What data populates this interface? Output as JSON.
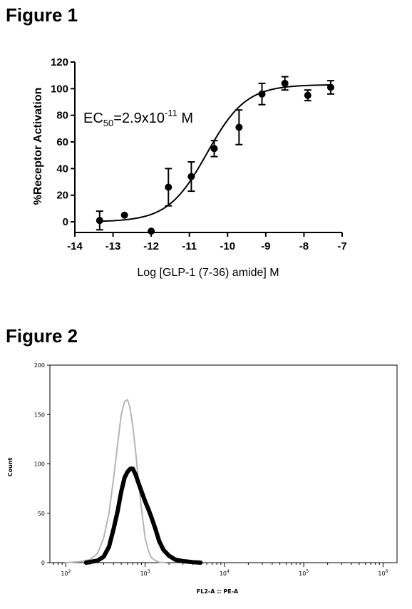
{
  "figure1": {
    "heading": "Figure 1",
    "annotation": {
      "prefix": "EC",
      "sub": "50",
      "middle": "=2.9x10",
      "sup": "-11",
      "suffix": " M"
    },
    "chart_data": {
      "type": "scatter",
      "xlabel": "Log [GLP-1 (7-36) amide] M",
      "ylabel": "%Receptor Activation",
      "xlim": [
        -14,
        -7
      ],
      "ylim": [
        -8,
        120
      ],
      "xticks": [
        "-14",
        "-13",
        "-12",
        "-11",
        "-10",
        "-9",
        "-8",
        "-7"
      ],
      "yticks": [
        "0",
        "20",
        "40",
        "60",
        "80",
        "100",
        "120"
      ],
      "points": [
        {
          "x": -13.35,
          "y": 1,
          "err": 7
        },
        {
          "x": -12.7,
          "y": 5,
          "err": 0
        },
        {
          "x": -12.0,
          "y": -7,
          "err": 0
        },
        {
          "x": -11.55,
          "y": 26,
          "err": 14
        },
        {
          "x": -10.95,
          "y": 34,
          "err": 11
        },
        {
          "x": -10.35,
          "y": 55,
          "err": 6
        },
        {
          "x": -9.7,
          "y": 71,
          "err": 13
        },
        {
          "x": -9.1,
          "y": 96,
          "err": 8
        },
        {
          "x": -8.5,
          "y": 104,
          "err": 5
        },
        {
          "x": -7.9,
          "y": 95,
          "err": 4
        },
        {
          "x": -7.3,
          "y": 101,
          "err": 5
        }
      ],
      "fit": {
        "bottom": 0,
        "top": 103,
        "log_ec50": -10.54,
        "hill": 0.85
      },
      "grid": false
    }
  },
  "figure2": {
    "heading": "Figure 2",
    "chart_data": {
      "type": "line",
      "xlabel": "FL2-A :: PE-A",
      "ylabel": "Count",
      "xscale": "log",
      "xlim": [
        63,
        1500000
      ],
      "ylim": [
        0,
        200
      ],
      "yticks": [
        "0",
        "50",
        "100",
        "150",
        "200"
      ],
      "xticks": [
        {
          "value": 100,
          "base": "10",
          "exp": "2"
        },
        {
          "value": 1000,
          "base": "10",
          "exp": "3"
        },
        {
          "value": 10000,
          "base": "10",
          "exp": "4"
        },
        {
          "value": 100000,
          "base": "10",
          "exp": "5"
        },
        {
          "value": 1000000,
          "base": "10",
          "exp": "6"
        }
      ],
      "series": [
        {
          "color": "#b5b5b5",
          "stroke": "thin",
          "points": [
            [
              100,
              0
            ],
            [
              150,
              1
            ],
            [
              200,
              3
            ],
            [
              250,
              9
            ],
            [
              300,
              25
            ],
            [
              350,
              50
            ],
            [
              400,
              85
            ],
            [
              450,
              120
            ],
            [
              500,
              150
            ],
            [
              550,
              163
            ],
            [
              600,
              165
            ],
            [
              640,
              158
            ],
            [
              700,
              138
            ],
            [
              760,
              112
            ],
            [
              830,
              80
            ],
            [
              920,
              48
            ],
            [
              1000,
              25
            ],
            [
              1100,
              12
            ],
            [
              1200,
              5
            ],
            [
              1350,
              2
            ],
            [
              1500,
              0.5
            ],
            [
              1800,
              0
            ]
          ]
        },
        {
          "color": "#000000",
          "stroke": "thick",
          "points": [
            [
              180,
              0
            ],
            [
              250,
              2
            ],
            [
              300,
              6
            ],
            [
              350,
              16
            ],
            [
              400,
              34
            ],
            [
              450,
              52
            ],
            [
              500,
              72
            ],
            [
              550,
              86
            ],
            [
              600,
              92
            ],
            [
              650,
              95
            ],
            [
              700,
              95
            ],
            [
              760,
              89
            ],
            [
              830,
              80
            ],
            [
              920,
              70
            ],
            [
              1000,
              62
            ],
            [
              1100,
              54
            ],
            [
              1200,
              46
            ],
            [
              1350,
              34
            ],
            [
              1500,
              22
            ],
            [
              1700,
              13
            ],
            [
              2000,
              7
            ],
            [
              2400,
              3
            ],
            [
              3000,
              1.5
            ],
            [
              4000,
              0.5
            ],
            [
              5000,
              0
            ]
          ]
        }
      ],
      "grid": false
    }
  }
}
